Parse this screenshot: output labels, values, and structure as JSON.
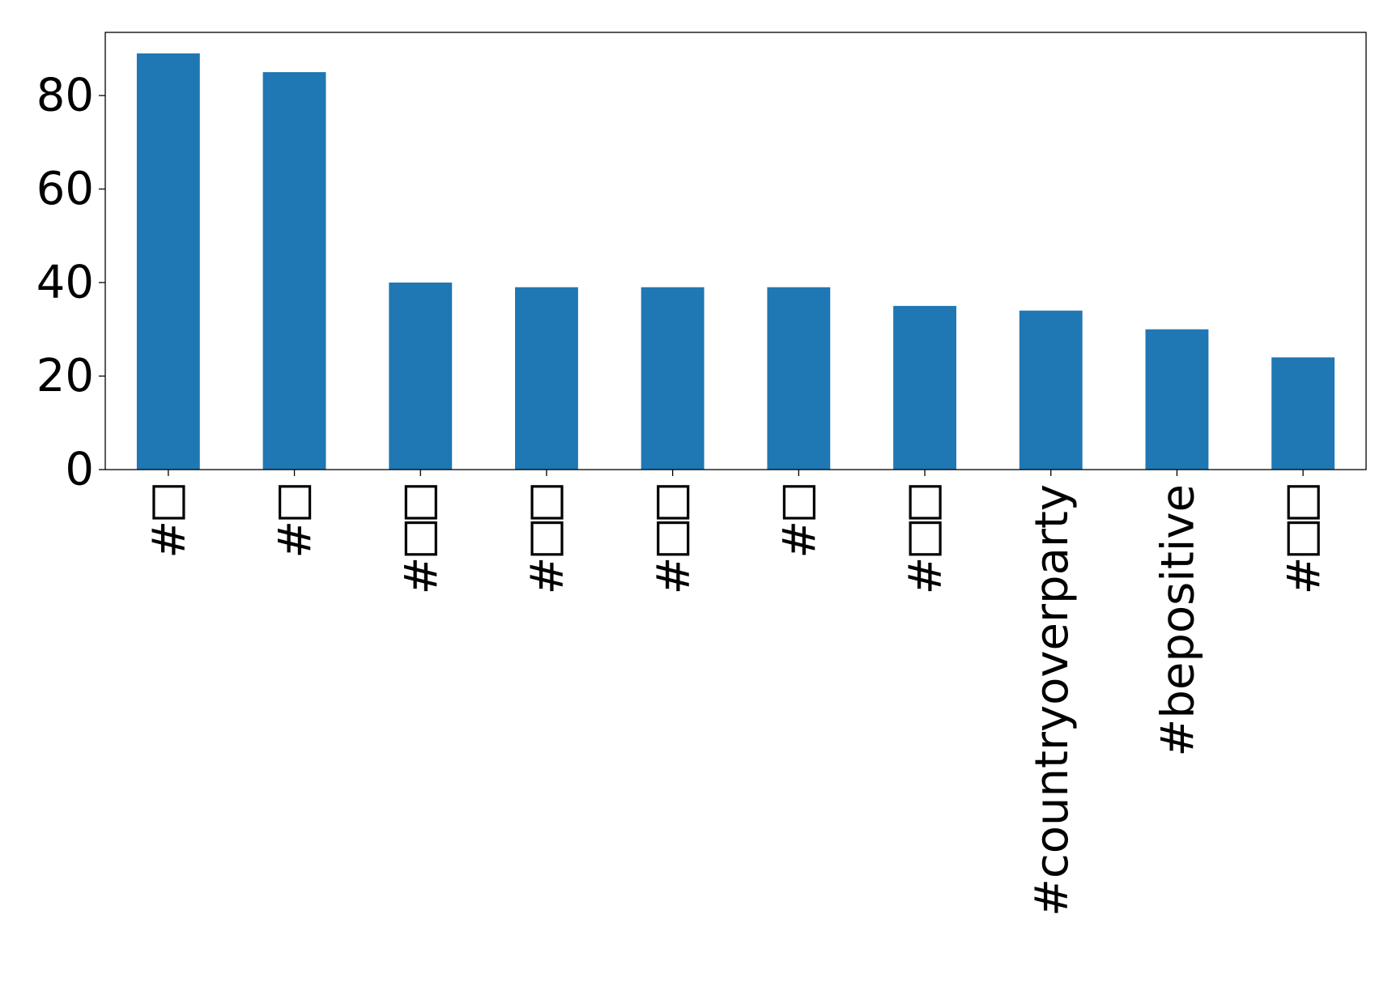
{
  "chart_data": {
    "type": "bar",
    "title": "",
    "xlabel": "",
    "ylabel": "",
    "categories": [
      "#□",
      "#□",
      "#□□",
      "#□□",
      "#□□",
      "#□",
      "#□□",
      "#countryoverparty",
      "#bepositive",
      "#□□"
    ],
    "values": [
      89,
      85,
      40,
      39,
      39,
      39,
      35,
      34,
      30,
      24
    ],
    "ylim": [
      0,
      93.5
    ],
    "yticks": [
      0,
      20,
      40,
      60,
      80
    ],
    "bar_color": "#1f77b4",
    "grid": false,
    "legend": "none",
    "tick_label_orientation": "vertical"
  }
}
